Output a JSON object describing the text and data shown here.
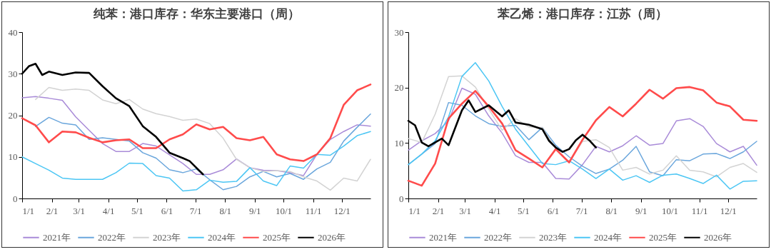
{
  "chart_data": [
    {
      "type": "line",
      "title": "纯苯：港口库存：华东主要港口（周）",
      "legend": "bottom",
      "x": [
        "--01-01",
        "--01-15",
        "--01-29",
        "--02-12",
        "--02-26",
        "--03-12",
        "--03-26",
        "--04-09",
        "--04-23",
        "--05-07",
        "--05-21",
        "--06-04",
        "--06-18",
        "--07-02",
        "--07-16",
        "--07-30",
        "--08-13",
        "--08-27",
        "--09-10",
        "--09-24",
        "--10-08",
        "--10-22",
        "--11-05",
        "--11-19",
        "--12-03",
        "--12-17",
        "--12-31"
      ],
      "xlim": [
        "--01-01",
        "--12-31"
      ],
      "xticks": [
        {
          "value": "--01-01",
          "label": "1/1"
        },
        {
          "value": "--02-01",
          "label": "2/1"
        },
        {
          "value": "--03-01",
          "label": "3/1"
        },
        {
          "value": "--04-01",
          "label": "4/1"
        },
        {
          "value": "--05-01",
          "label": "5/1"
        },
        {
          "value": "--06-01",
          "label": "6/1"
        },
        {
          "value": "--07-01",
          "label": "7/1"
        },
        {
          "value": "--08-01",
          "label": "8/1"
        },
        {
          "value": "--09-01",
          "label": "9/1"
        },
        {
          "value": "--10-01",
          "label": "10/1"
        },
        {
          "value": "--11-01",
          "label": "11/1"
        },
        {
          "value": "--12-01",
          "label": "12/1"
        }
      ],
      "ylim": [
        0,
        40
      ],
      "yticks": [
        0,
        10,
        20,
        30,
        40
      ],
      "series": [
        {
          "name": "2021年",
          "color": "#a98bd8",
          "values": [
            24.2,
            24.5,
            24.1,
            23.6,
            19.6,
            16.4,
            13.2,
            11.3,
            11.3,
            13.2,
            12.6,
            10.5,
            8.4,
            5.8,
            5.8,
            6.9,
            9.5,
            7.4,
            6.8,
            6.7,
            6.2,
            5.5,
            10.6,
            14.2,
            16.1,
            17.7,
            17.4
          ]
        },
        {
          "name": "2022年",
          "color": "#6aa6dc",
          "values": [
            null,
            17.3,
            19.5,
            18.1,
            17.7,
            14.2,
            14.6,
            14.2,
            13.8,
            11.0,
            9.7,
            6.9,
            6.2,
            7.1,
            4.5,
            2.1,
            2.9,
            5.2,
            6.5,
            5.2,
            6.0,
            4.6,
            7.1,
            8.7,
            13.8,
            17.1,
            20.3
          ]
        },
        {
          "name": "2023年",
          "color": "#d3d3d3",
          "values": [
            null,
            23.8,
            26.7,
            26.0,
            26.3,
            26.0,
            23.7,
            22.8,
            23.8,
            21.5,
            20.4,
            19.7,
            18.8,
            19.1,
            18.0,
            14.5,
            9.4,
            7.4,
            6.5,
            6.7,
            6.5,
            5.2,
            4.2,
            2.0,
            4.9,
            4.2,
            9.4
          ]
        },
        {
          "name": "2024年",
          "color": "#4cc6f4",
          "values": [
            10.0,
            8.4,
            6.8,
            4.9,
            4.6,
            4.6,
            4.6,
            6.2,
            8.5,
            8.4,
            5.5,
            4.9,
            1.8,
            2.1,
            4.4,
            3.9,
            4.1,
            7.4,
            4.2,
            3.1,
            7.8,
            7.3,
            10.6,
            10.4,
            12.6,
            15.1,
            16.1
          ]
        },
        {
          "name": "2025年",
          "color": "#ff4b4b",
          "values": [
            19.3,
            17.6,
            13.5,
            16.1,
            15.9,
            14.6,
            13.5,
            14.0,
            14.2,
            12.1,
            12.1,
            14.2,
            15.4,
            17.8,
            16.6,
            17.2,
            14.5,
            14.0,
            14.8,
            10.6,
            9.4,
            9.0,
            10.6,
            14.5,
            22.5,
            26.0,
            27.4
          ]
        },
        {
          "name": "2026年",
          "color": "#000000",
          "x": [
            "--01-01",
            "--01-08",
            "--01-15",
            "--01-22",
            "--01-29",
            "--02-12",
            "--02-26",
            "--03-12",
            "--03-26",
            "--04-09",
            "--04-23",
            "--05-07",
            "--05-21",
            "--06-04",
            "--06-18",
            "--06-25",
            "--07-09"
          ],
          "values": [
            30.0,
            31.8,
            32.4,
            29.7,
            30.5,
            29.7,
            30.3,
            30.2,
            27.0,
            24.1,
            22.2,
            17.4,
            14.8,
            11.0,
            9.7,
            9.0,
            5.8
          ]
        }
      ]
    },
    {
      "type": "line",
      "title": "苯乙烯：港口库存：江苏（周）",
      "legend": "bottom",
      "x": [
        "--01-01",
        "--01-15",
        "--01-29",
        "--02-12",
        "--02-26",
        "--03-12",
        "--03-26",
        "--04-09",
        "--04-23",
        "--05-07",
        "--05-21",
        "--06-04",
        "--06-18",
        "--07-02",
        "--07-16",
        "--07-30",
        "--08-13",
        "--08-27",
        "--09-10",
        "--09-24",
        "--10-08",
        "--10-22",
        "--11-05",
        "--11-19",
        "--12-03",
        "--12-17",
        "--12-31"
      ],
      "xlim": [
        "--01-01",
        "--12-31"
      ],
      "xticks": [
        {
          "value": "--01-01",
          "label": "1/1"
        },
        {
          "value": "--02-01",
          "label": "2/1"
        },
        {
          "value": "--03-01",
          "label": "3/1"
        },
        {
          "value": "--04-01",
          "label": "4/1"
        },
        {
          "value": "--05-01",
          "label": "5/1"
        },
        {
          "value": "--06-01",
          "label": "6/1"
        },
        {
          "value": "--07-01",
          "label": "7/1"
        },
        {
          "value": "--08-01",
          "label": "8/1"
        },
        {
          "value": "--09-01",
          "label": "9/1"
        },
        {
          "value": "--10-01",
          "label": "10/1"
        },
        {
          "value": "--11-01",
          "label": "11/1"
        },
        {
          "value": "--12-01",
          "label": "12/1"
        }
      ],
      "ylim": [
        0,
        30
      ],
      "yticks": [
        0,
        10,
        20,
        30
      ],
      "series": [
        {
          "name": "2021年",
          "color": "#a98bd8",
          "values": [
            8.7,
            10.4,
            11.7,
            14.0,
            19.9,
            18.8,
            14.9,
            11.8,
            7.7,
            6.5,
            6.5,
            3.6,
            3.5,
            6.1,
            9.4,
            8.4,
            9.5,
            11.3,
            9.6,
            9.9,
            14.0,
            14.4,
            13.0,
            9.9,
            8.4,
            9.4,
            6.0
          ]
        },
        {
          "name": "2022年",
          "color": "#6aa6dc",
          "values": [
            6.1,
            8.0,
            9.9,
            17.3,
            16.8,
            14.9,
            13.5,
            13.0,
            13.2,
            10.6,
            12.8,
            9.6,
            7.5,
            5.8,
            4.5,
            5.3,
            6.9,
            9.4,
            4.8,
            4.1,
            7.0,
            6.8,
            8.0,
            8.1,
            7.2,
            8.4,
            10.3
          ]
        },
        {
          "name": "2023年",
          "color": "#d3d3d3",
          "values": [
            10.8,
            10.1,
            15.2,
            22.0,
            22.1,
            20.1,
            16.1,
            12.3,
            14.4,
            12.9,
            12.8,
            8.9,
            6.5,
            10.3,
            10.6,
            9.2,
            5.1,
            5.6,
            4.4,
            5.1,
            7.7,
            5.1,
            4.8,
            3.9,
            5.6,
            6.3,
            4.7
          ]
        },
        {
          "name": "2024年",
          "color": "#4cc6f4",
          "values": [
            6.1,
            8.0,
            10.4,
            14.7,
            22.0,
            24.5,
            21.2,
            16.6,
            12.5,
            9.4,
            6.3,
            6.1,
            6.8,
            5.3,
            3.6,
            5.3,
            3.3,
            4.1,
            2.9,
            4.2,
            4.4,
            3.6,
            2.7,
            4.2,
            1.7,
            3.1,
            3.2
          ]
        },
        {
          "name": "2025年",
          "color": "#ff4b4b",
          "values": [
            3.2,
            2.3,
            6.3,
            14.4,
            17.1,
            19.4,
            16.6,
            13.5,
            8.7,
            7.2,
            5.6,
            8.9,
            6.5,
            10.6,
            14.1,
            16.5,
            14.8,
            17.1,
            19.6,
            18.0,
            19.9,
            20.1,
            19.5,
            17.3,
            16.6,
            14.2,
            14.0
          ]
        },
        {
          "name": "2026年",
          "color": "#000000",
          "x": [
            "--01-01",
            "--01-08",
            "--01-15",
            "--01-22",
            "--02-05",
            "--02-12",
            "--02-26",
            "--03-05",
            "--03-12",
            "--03-26",
            "--04-09",
            "--04-16",
            "--04-23",
            "--05-07",
            "--05-21",
            "--05-28",
            "--06-04",
            "--06-11",
            "--06-18",
            "--06-25",
            "--07-02",
            "--07-09",
            "--07-16"
          ],
          "values": [
            14.0,
            13.2,
            10.1,
            9.4,
            10.8,
            9.6,
            15.9,
            17.7,
            15.6,
            16.8,
            14.8,
            15.9,
            13.7,
            13.3,
            12.5,
            10.4,
            9.2,
            8.4,
            8.9,
            10.5,
            11.5,
            10.5,
            9.2
          ]
        }
      ]
    }
  ]
}
